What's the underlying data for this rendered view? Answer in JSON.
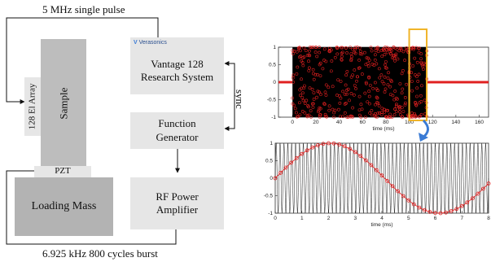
{
  "diagram": {
    "top_label": "5 MHz single pulse",
    "bottom_label": "6.925 kHz 800 cycles burst",
    "sync_label": "sync",
    "array_label": "128 El Array",
    "sample_label": "Sample",
    "pzt_label": "PZT",
    "loading_mass_label": "Loading Mass",
    "vantage_logo": "Verasonics",
    "vantage_label_line1": "Vantage 128",
    "vantage_label_line2": "Research System",
    "function_gen_line1": "Function",
    "function_gen_line2": "Generator",
    "rf_amp_line1": "RF Power",
    "rf_amp_line2": "Amplifier",
    "colors": {
      "box_light": "#e6e6e6",
      "box_mid": "#bdbdbd",
      "box_dark": "#b3b3b3",
      "zoom_box": "#f0b429",
      "zoom_arrow": "#3a7bd5",
      "marker": "#e02020"
    }
  },
  "chart_data": [
    {
      "type": "line",
      "title": "",
      "xlabel": "time (ms)",
      "ylabel": "",
      "xlim": [
        -12,
        168
      ],
      "ylim": [
        -1,
        1
      ],
      "x_ticks": [
        0,
        20,
        40,
        60,
        80,
        100,
        120,
        140,
        160
      ],
      "y_ticks": [
        -1,
        -0.5,
        0,
        0.5,
        1
      ],
      "burst_start_ms": 0,
      "burst_end_ms": 115.5,
      "zoom_window_ms": [
        100,
        115
      ],
      "series": [
        {
          "values_description": "",
          "style": "black continuous sine burst with red circle samples"
        }
      ]
    },
    {
      "type": "line",
      "title": "",
      "xlabel": "time (ms)",
      "ylabel": "",
      "xlim": [
        0,
        8
      ],
      "ylim": [
        -1,
        1
      ],
      "x_ticks": [
        0,
        1,
        2,
        3,
        4,
        5,
        6,
        7,
        8
      ],
      "y_ticks": [
        -1,
        -0.5,
        0,
        0.5,
        1
      ],
      "carrier_cycles_shown": 55,
      "sample_envelope_period_ms": 8.2,
      "sample_points_x": [
        0,
        0.2,
        0.4,
        0.6,
        0.8,
        1.0,
        1.2,
        1.4,
        1.6,
        1.8,
        2.0,
        2.2,
        2.4,
        2.6,
        2.8,
        3.0,
        3.2,
        3.4,
        3.6,
        3.8,
        4.0,
        4.2,
        4.4,
        4.6,
        4.8,
        5.0,
        5.2,
        5.4,
        5.6,
        5.8,
        6.0,
        6.2,
        6.4,
        6.6,
        6.8,
        7.0,
        7.2,
        7.4,
        7.6,
        7.8,
        8.0
      ]
    }
  ]
}
